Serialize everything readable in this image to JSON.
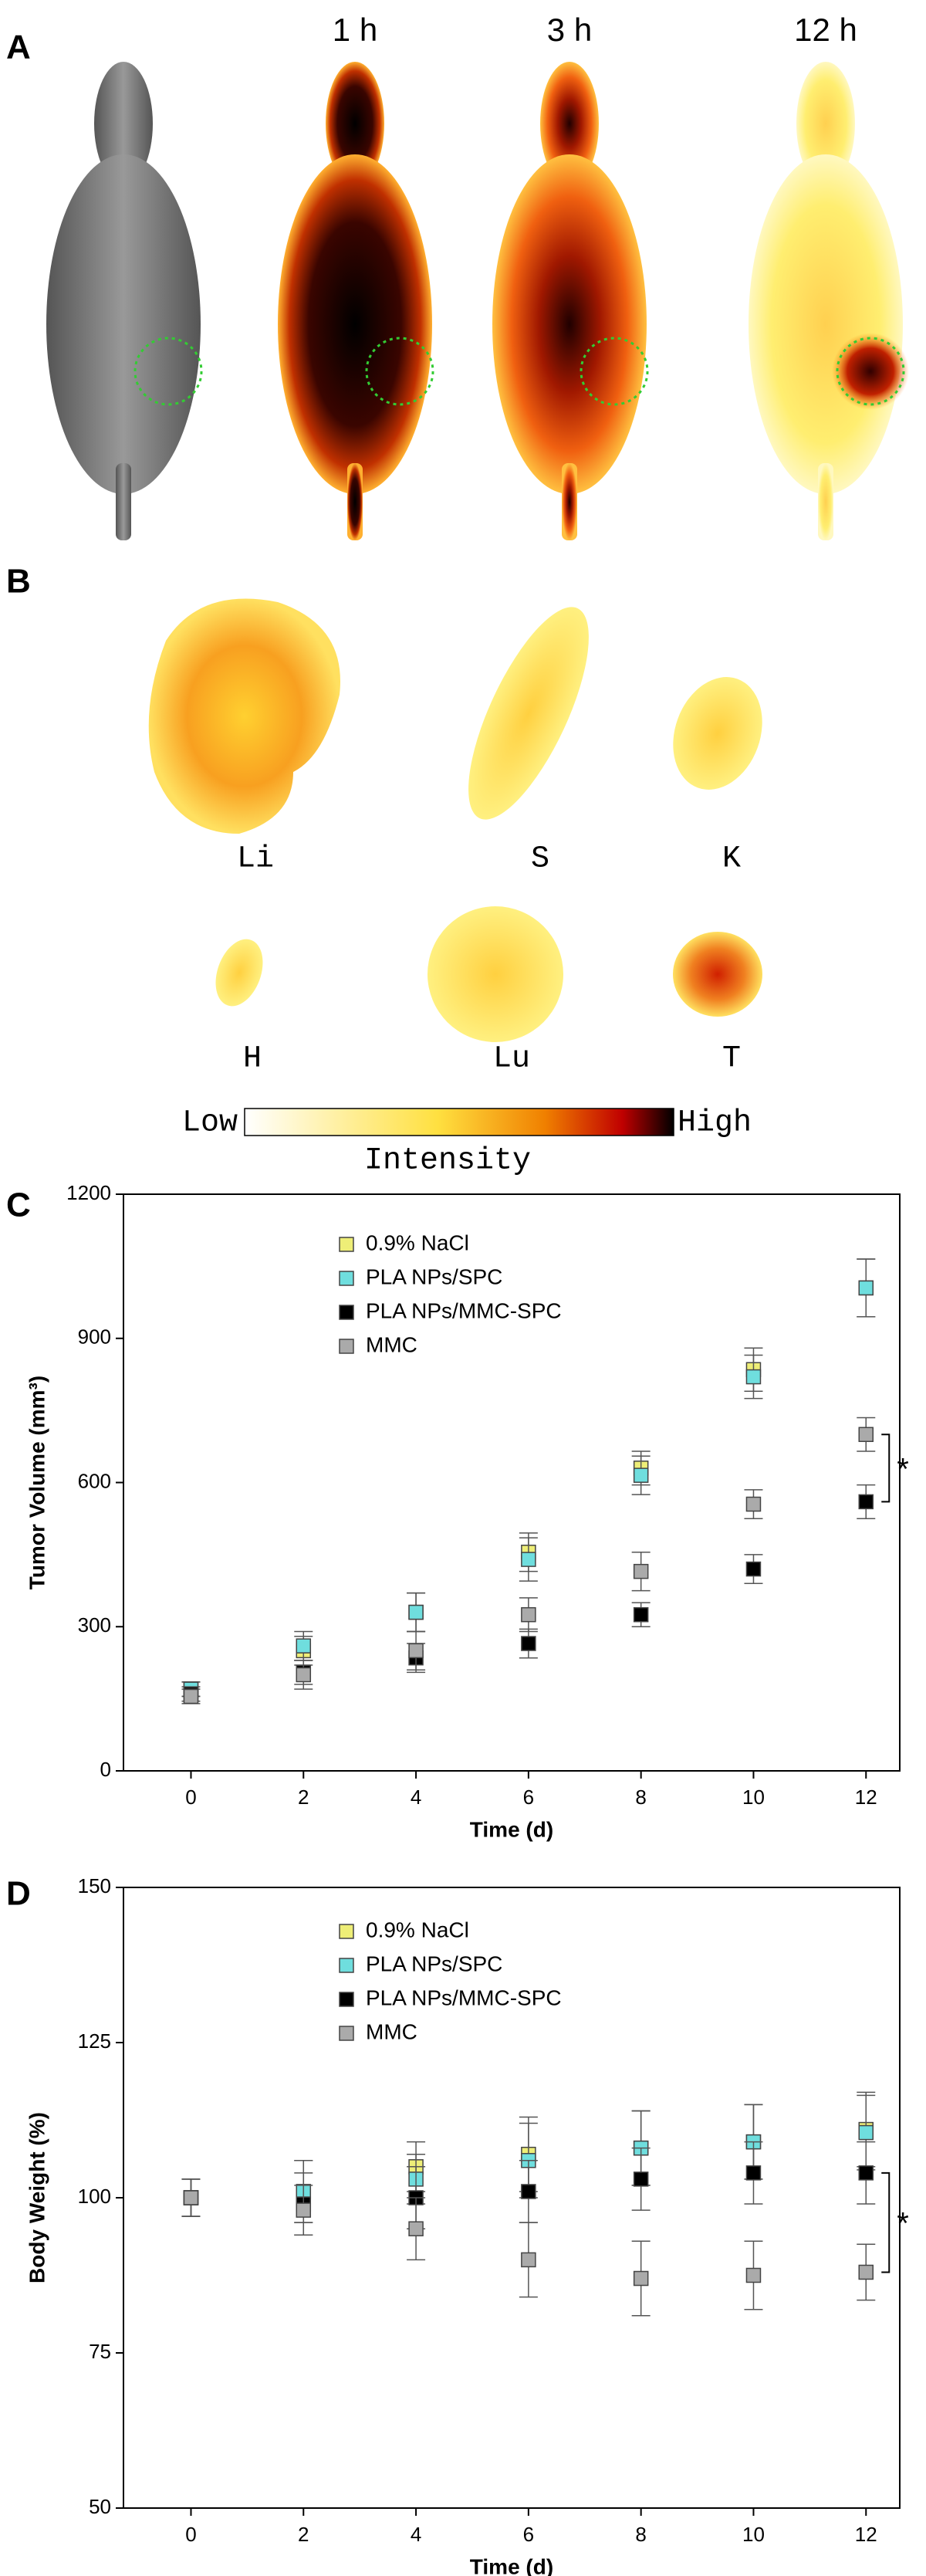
{
  "panel_a": {
    "label": "A",
    "times": [
      "1 h",
      "3 h",
      "12 h"
    ]
  },
  "panel_b": {
    "label": "B",
    "organs": [
      "Li",
      "S",
      "K",
      "H",
      "Lu",
      "T"
    ],
    "colorbar": {
      "low": "Low",
      "high": "High",
      "title": "Intensity"
    }
  },
  "chart_data": [
    {
      "type": "scatter",
      "panel_label": "C",
      "x": [
        0,
        2,
        4,
        6,
        8,
        10,
        12
      ],
      "xlabel": "Time (d)",
      "ylabel": "Tumor Volume (mm³)",
      "xlim": [
        -1.2,
        12.6
      ],
      "ylim": [
        0,
        1200
      ],
      "xticks": [
        0,
        2,
        4,
        6,
        8,
        10,
        12
      ],
      "yticks": [
        0,
        300,
        600,
        900,
        1200
      ],
      "series": [
        {
          "name": "0.9% NaCl",
          "color": "#eeee77",
          "values": [
            170,
            250,
            330,
            455,
            630,
            835,
            1005
          ],
          "errors": [
            15,
            30,
            40,
            40,
            35,
            45,
            60
          ]
        },
        {
          "name": "PLA NPs/SPC",
          "color": "#6fdede",
          "values": [
            170,
            260,
            330,
            440,
            615,
            820,
            1005
          ],
          "errors": [
            15,
            30,
            40,
            45,
            40,
            45,
            60
          ]
        },
        {
          "name": "PLA NPs/MMC-SPC",
          "color": "#000000",
          "values": [
            160,
            205,
            235,
            265,
            325,
            420,
            560
          ],
          "errors": [
            15,
            25,
            30,
            30,
            25,
            30,
            35
          ]
        },
        {
          "name": "MMC",
          "color": "#aaaaaa",
          "values": [
            155,
            200,
            250,
            325,
            415,
            555,
            700
          ],
          "errors": [
            15,
            30,
            40,
            35,
            40,
            30,
            35
          ]
        }
      ],
      "significance": "*"
    },
    {
      "type": "scatter",
      "panel_label": "D",
      "x": [
        0,
        2,
        4,
        6,
        8,
        10,
        12
      ],
      "xlabel": "Time (d)",
      "ylabel": "Body Weight  (%)",
      "xlim": [
        -1.2,
        12.6
      ],
      "ylim": [
        50,
        150
      ],
      "xticks": [
        0,
        2,
        4,
        6,
        8,
        10,
        12
      ],
      "yticks": [
        50,
        75,
        100,
        125,
        150
      ],
      "series": [
        {
          "name": "0.9% NaCl",
          "color": "#eeee77",
          "values": [
            100,
            101,
            105,
            107,
            108,
            109,
            111
          ],
          "errors": [
            3,
            5,
            4,
            6,
            6,
            6,
            6
          ]
        },
        {
          "name": "PLA NPs/SPC",
          "color": "#6fdede",
          "values": [
            100,
            101,
            103,
            106,
            108,
            109,
            110.5
          ],
          "errors": [
            3,
            5,
            4,
            6,
            6,
            6,
            6
          ]
        },
        {
          "name": "PLA NPs/MMC-SPC",
          "color": "#000000",
          "values": [
            100,
            99,
            100,
            101,
            103,
            104,
            104
          ],
          "errors": [
            3,
            5,
            5,
            5,
            5,
            5,
            5
          ]
        },
        {
          "name": "MMC",
          "color": "#aaaaaa",
          "values": [
            100,
            98,
            95,
            90,
            87,
            87.5,
            88
          ],
          "errors": [
            3,
            4,
            5,
            6,
            6,
            5.5,
            4.5
          ]
        }
      ],
      "significance": "*"
    }
  ]
}
